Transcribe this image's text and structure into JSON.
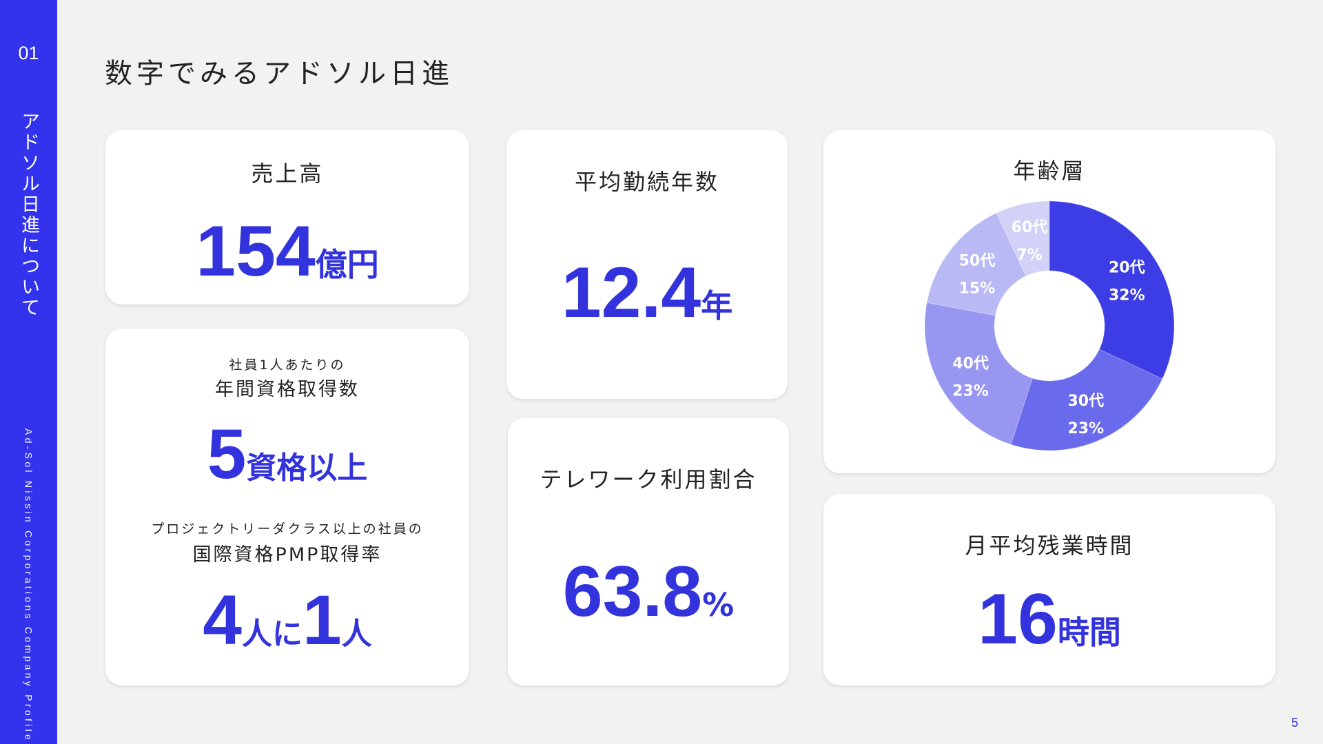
{
  "sidebar": {
    "section_number": "01",
    "section_title": "アドソル日進について",
    "company_profile": "Ad-Sol Nissin Corporations Company Profile"
  },
  "page_title": "数字でみるアドソル日進",
  "page_number": "5",
  "colors": {
    "accent": "#3333dd",
    "sidebar": "#3333ee",
    "background": "#f2f2f2"
  },
  "sales": {
    "label": "売上高",
    "value": "154",
    "unit": "億円"
  },
  "tenure": {
    "label": "平均勤続年数",
    "value": "12.4",
    "unit": "年"
  },
  "certifications": {
    "label_sub": "社員1人あたりの",
    "label": "年間資格取得数",
    "value": "5",
    "unit": "資格以上"
  },
  "pmp": {
    "label_sub": "プロジェクトリーダクラス以上の社員の",
    "label": "国際資格PMP取得率",
    "value_a": "4",
    "unit_a": "人に",
    "value_b": "1",
    "unit_b": "人"
  },
  "telework": {
    "label": "テレワーク利用割合",
    "value": "63.8",
    "unit": "%"
  },
  "overtime": {
    "label": "月平均残業時間",
    "value": "16",
    "unit": "時間"
  },
  "chart_data": {
    "type": "pie",
    "title": "年齢層",
    "categories": [
      "20代",
      "30代",
      "40代",
      "50代",
      "60代"
    ],
    "values": [
      32,
      23,
      23,
      15,
      7
    ],
    "value_labels": [
      "32%",
      "23%",
      "23%",
      "15%",
      "7%"
    ],
    "colors": [
      "#3d3de6",
      "#6a6aec",
      "#9797f1",
      "#b9b9f5",
      "#d2d2f8"
    ]
  }
}
